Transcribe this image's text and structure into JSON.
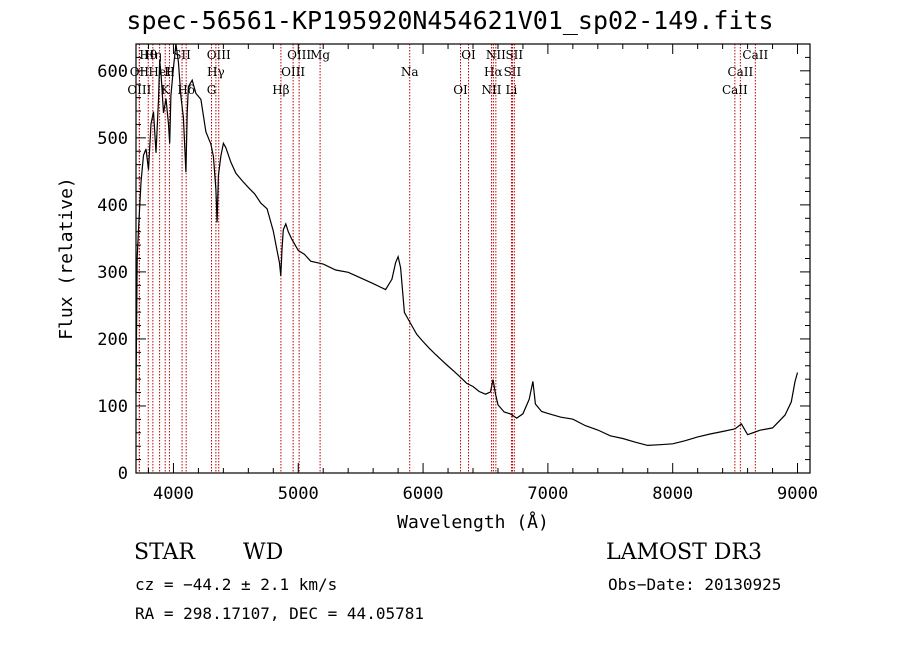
{
  "chart_data": {
    "type": "line",
    "title": "spec-56561-KP195920N454621V01_sp02-149.fits",
    "xlabel": "Wavelength (Å)",
    "ylabel": "Flux (relative)",
    "xlim": [
      3700,
      9100
    ],
    "ylim": [
      0,
      640
    ],
    "xticks": [
      4000,
      5000,
      6000,
      7000,
      8000,
      9000
    ],
    "yticks": [
      0,
      100,
      200,
      300,
      400,
      500,
      600
    ],
    "series": [
      {
        "name": "flux",
        "x": [
          3700,
          3710,
          3720,
          3740,
          3760,
          3780,
          3800,
          3820,
          3840,
          3860,
          3880,
          3890,
          3900,
          3920,
          3940,
          3960,
          3970,
          3980,
          4000,
          4020,
          4040,
          4060,
          4080,
          4100,
          4110,
          4120,
          4150,
          4180,
          4220,
          4260,
          4300,
          4320,
          4340,
          4350,
          4360,
          4380,
          4400,
          4420,
          4460,
          4500,
          4550,
          4600,
          4650,
          4700,
          4750,
          4800,
          4830,
          4850,
          4860,
          4870,
          4880,
          4900,
          4920,
          4950,
          5000,
          5050,
          5100,
          5200,
          5300,
          5400,
          5500,
          5600,
          5700,
          5750,
          5780,
          5800,
          5820,
          5850,
          5900,
          5950,
          6000,
          6050,
          6100,
          6150,
          6200,
          6250,
          6300,
          6350,
          6400,
          6450,
          6500,
          6540,
          6560,
          6580,
          6600,
          6650,
          6700,
          6750,
          6800,
          6850,
          6880,
          6900,
          6950,
          7000,
          7100,
          7200,
          7300,
          7400,
          7500,
          7600,
          7700,
          7800,
          7900,
          8000,
          8100,
          8200,
          8300,
          8400,
          8500,
          8550,
          8600,
          8650,
          8700,
          8800,
          8900,
          8950,
          8980,
          9000
        ],
        "y": [
          120,
          320,
          360,
          430,
          470,
          480,
          450,
          520,
          540,
          480,
          560,
          620,
          600,
          540,
          560,
          520,
          490,
          560,
          600,
          640,
          610,
          560,
          530,
          450,
          540,
          580,
          590,
          570,
          560,
          510,
          490,
          470,
          420,
          370,
          440,
          470,
          490,
          485,
          465,
          450,
          440,
          430,
          420,
          405,
          395,
          360,
          330,
          310,
          290,
          330,
          360,
          370,
          360,
          350,
          335,
          330,
          320,
          315,
          305,
          300,
          290,
          280,
          270,
          285,
          310,
          320,
          305,
          240,
          225,
          210,
          200,
          190,
          180,
          170,
          160,
          150,
          140,
          130,
          125,
          118,
          115,
          120,
          140,
          120,
          105,
          95,
          92,
          85,
          90,
          110,
          135,
          100,
          88,
          85,
          80,
          78,
          70,
          65,
          58,
          55,
          50,
          45,
          45,
          45,
          48,
          52,
          55,
          58,
          62,
          70,
          55,
          60,
          65,
          70,
          90,
          110,
          140,
          150
        ]
      }
    ],
    "lines": [
      {
        "label": "Hθ",
        "w": 3798
      },
      {
        "label": "OII",
        "w": 3727
      },
      {
        "label": "OIII",
        "w": 3727
      },
      {
        "label": "Hη",
        "w": 3835
      },
      {
        "label": "HeI",
        "w": 3889
      },
      {
        "label": "K",
        "w": 3934
      },
      {
        "label": "SII",
        "w": 4069
      },
      {
        "label": "H",
        "w": 3968
      },
      {
        "label": "Hδ",
        "w": 4102
      },
      {
        "label": "OIII",
        "w": 4363
      },
      {
        "label": "Hγ",
        "w": 4340
      },
      {
        "label": "G",
        "w": 4305
      },
      {
        "label": "OIII",
        "w": 5007
      },
      {
        "label": "OIII",
        "w": 4959
      },
      {
        "label": "Hβ",
        "w": 4861
      },
      {
        "label": "Mg",
        "w": 5175
      },
      {
        "label": "Na",
        "w": 5893
      },
      {
        "label": "OI",
        "w": 6300
      },
      {
        "label": "OI",
        "w": 6364
      },
      {
        "label": "Hα",
        "w": 6563
      },
      {
        "label": "NII",
        "w": 6548
      },
      {
        "label": "NII",
        "w": 6583
      },
      {
        "label": "SII",
        "w": 6716
      },
      {
        "label": "Li",
        "w": 6708
      },
      {
        "label": "SII",
        "w": 6731
      },
      {
        "label": "CaII",
        "w": 8542
      },
      {
        "label": "CaII",
        "w": 8498
      },
      {
        "label": "CaII",
        "w": 8662
      }
    ]
  },
  "info": {
    "object_class": "STAR",
    "subclass": "WD",
    "survey": "LAMOST DR3",
    "cz": "cz = −44.2 ± 2.1 km/s",
    "obs_date": "Obs−Date: 20130925",
    "coords": "RA = 298.17107, DEC =  44.05781"
  }
}
